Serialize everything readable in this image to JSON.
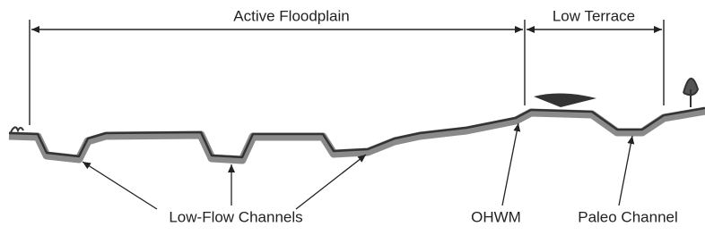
{
  "dimensions": {
    "active_floodplain": "Active Floodplain",
    "low_terrace": "Low Terrace"
  },
  "labels": {
    "low_flow_channels": "Low-Flow Channels",
    "ohwm": "OHWM",
    "paleo_channel": "Paleo Channel"
  }
}
